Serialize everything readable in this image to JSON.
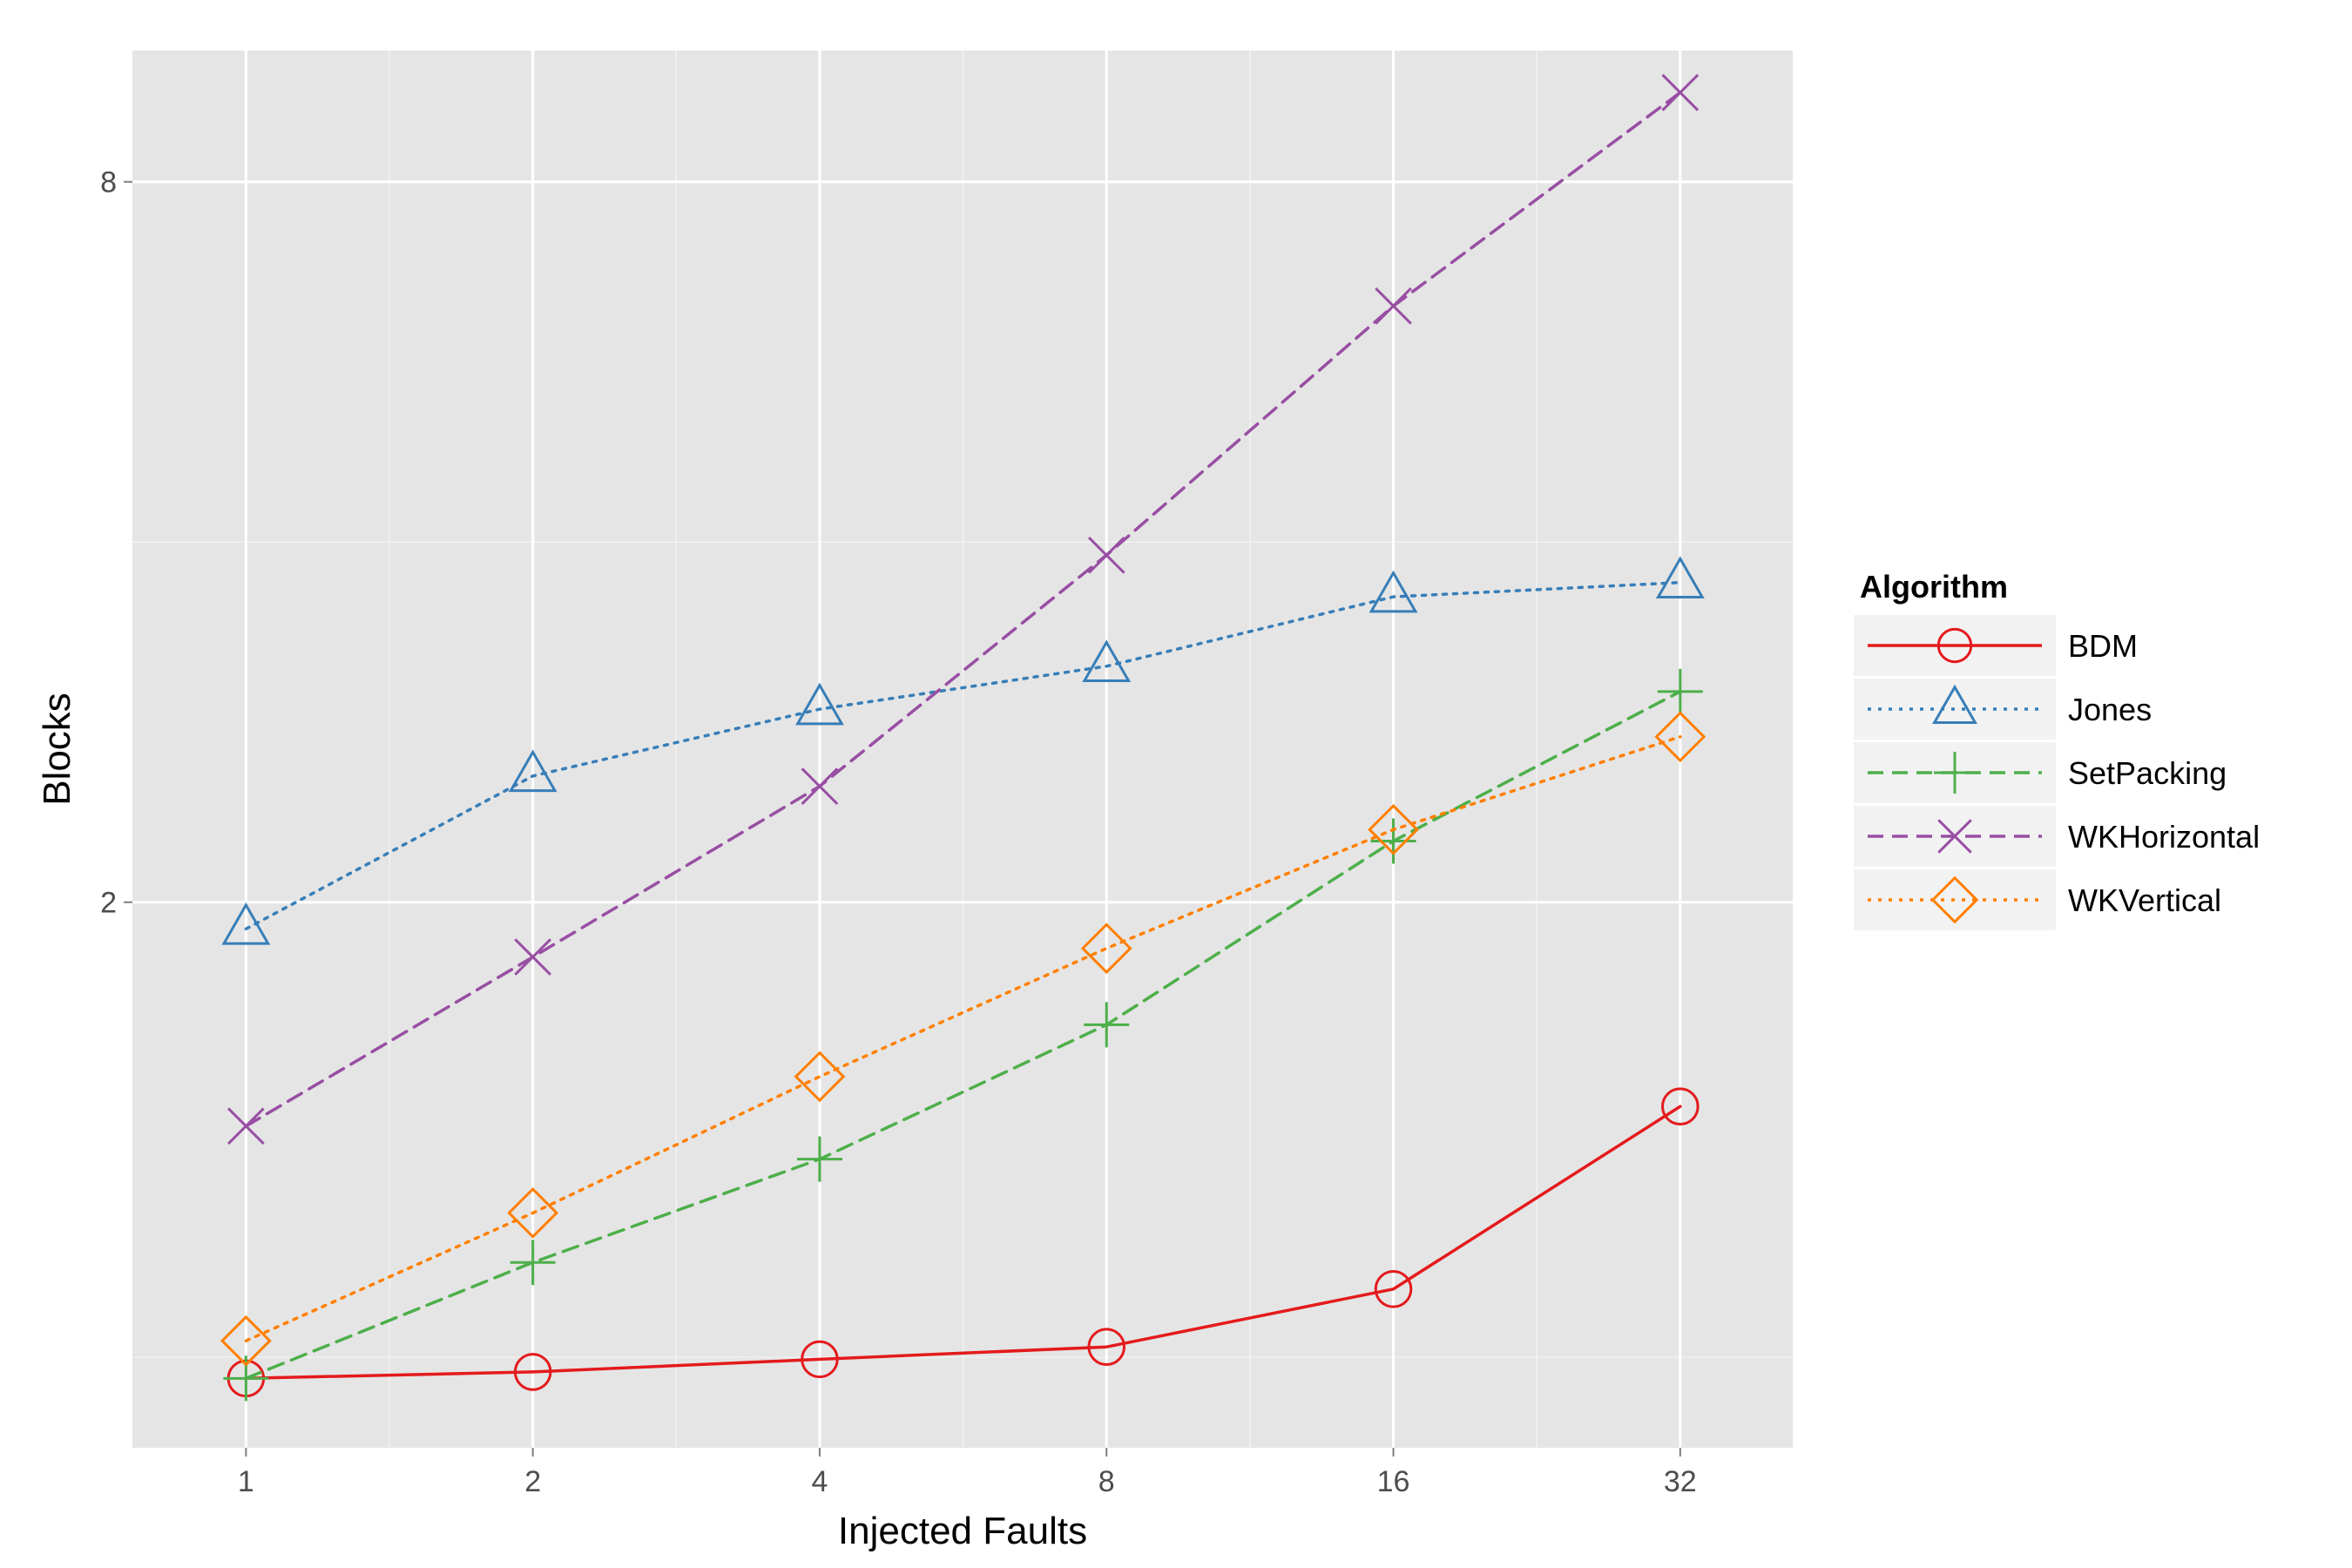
{
  "chart_data": {
    "type": "line",
    "xlabel": "Injected Faults",
    "ylabel": "Blocks",
    "x_scale": "log2",
    "y_scale": "log",
    "x": [
      1,
      2,
      4,
      8,
      16,
      32
    ],
    "x_ticks": [
      "1",
      "2",
      "4",
      "8",
      "16",
      "32"
    ],
    "xlim": [
      0.76,
      42
    ],
    "y_ticks": [
      2,
      8
    ],
    "y_tick_labels": [
      "2",
      "8"
    ],
    "ylim": [
      0.7,
      10.3
    ],
    "grid": true,
    "legend": {
      "title": "Algorithm",
      "position": "right"
    },
    "series": [
      {
        "name": "BDM",
        "color": "#E41A1C",
        "marker": "circle",
        "line": "solid",
        "values": [
          0.8,
          0.81,
          0.83,
          0.85,
          0.95,
          1.35
        ]
      },
      {
        "name": "Jones",
        "color": "#377EB8",
        "marker": "triangle",
        "line": "dotted",
        "values": [
          1.9,
          2.55,
          2.9,
          3.15,
          3.6,
          3.7
        ]
      },
      {
        "name": "SetPacking",
        "color": "#4DAF4A",
        "marker": "plus",
        "line": "dashed",
        "values": [
          0.8,
          1.0,
          1.22,
          1.58,
          2.25,
          3.0
        ]
      },
      {
        "name": "WKHorizontal",
        "color": "#984EA3",
        "marker": "cross",
        "line": "dashed",
        "values": [
          1.3,
          1.8,
          2.5,
          3.9,
          6.3,
          9.5
        ]
      },
      {
        "name": "WKVertical",
        "color": "#FF7F00",
        "marker": "diamond",
        "line": "dotted",
        "values": [
          0.86,
          1.1,
          1.43,
          1.83,
          2.3,
          2.75
        ]
      }
    ]
  }
}
